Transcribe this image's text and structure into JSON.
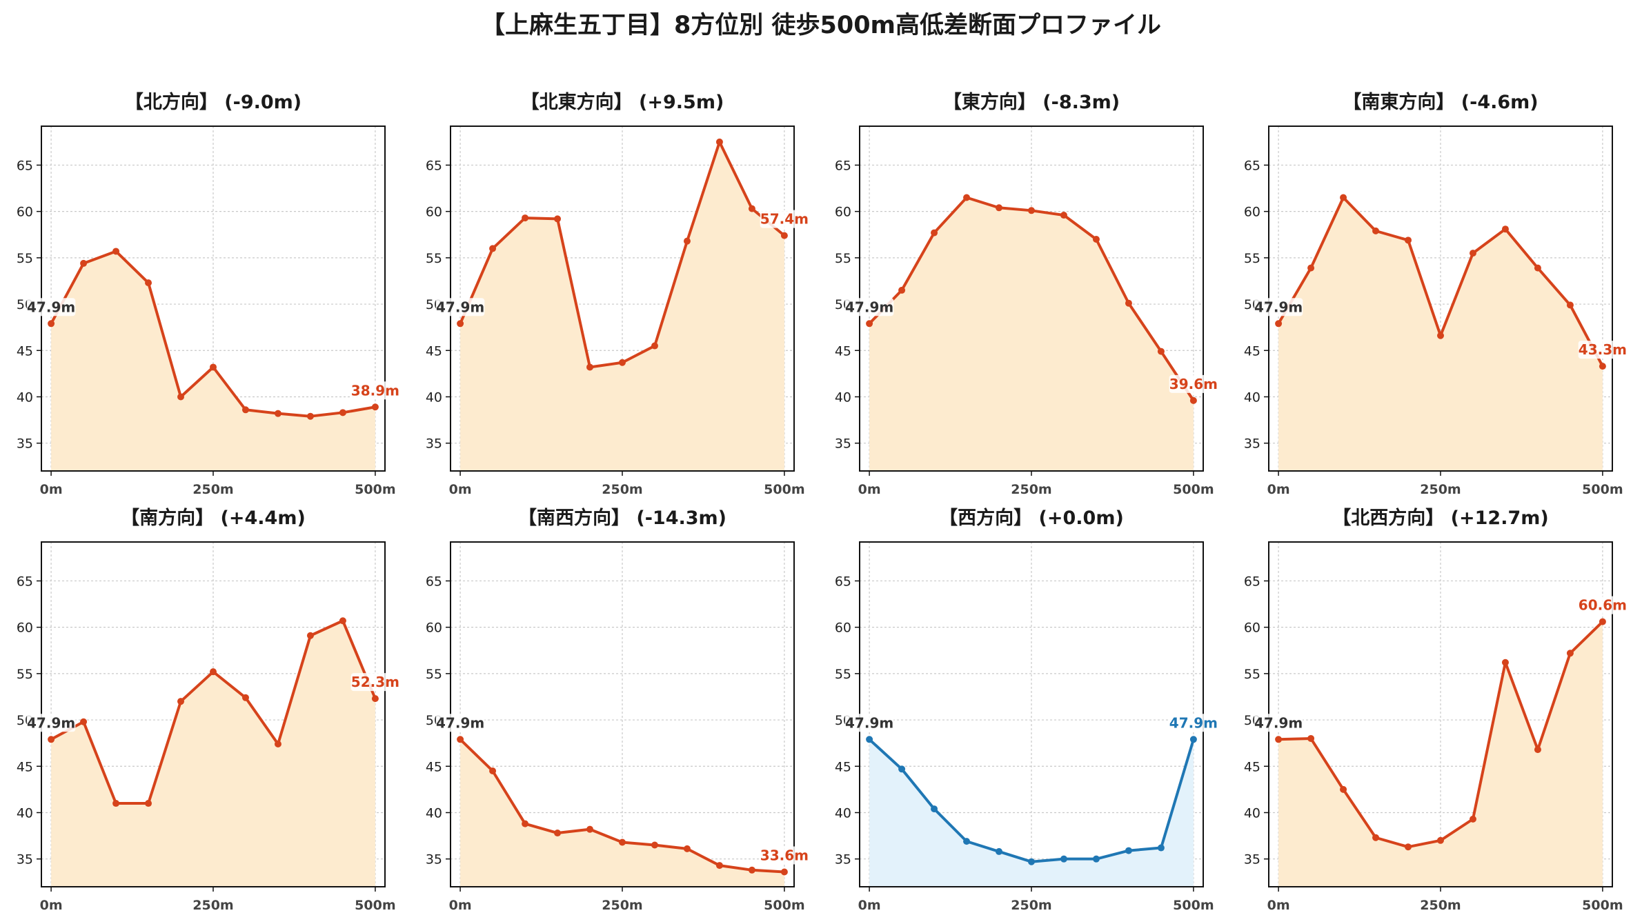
{
  "figure_title": "【上麻生五丁目】8方位別 徒歩500m高低差断面プロファイル",
  "colors": {
    "line": "#d6431b",
    "fill": "#fdebcf",
    "flat_line": "#1f77b4",
    "flat_fill": "#e3f2fb",
    "grid": "#c8c8c8"
  },
  "chart_data": [
    {
      "type": "area",
      "title": "【北方向】 (-9.0m)",
      "style": "default",
      "x": [
        0,
        50,
        100,
        150,
        200,
        250,
        300,
        350,
        400,
        450,
        500
      ],
      "y": [
        47.9,
        54.4,
        55.7,
        52.3,
        40.0,
        43.2,
        38.6,
        38.2,
        37.9,
        38.3,
        38.9
      ],
      "start_label": "47.9m",
      "end_label": "38.9m"
    },
    {
      "type": "area",
      "title": "【北東方向】 (+9.5m)",
      "style": "default",
      "x": [
        0,
        50,
        100,
        150,
        200,
        250,
        300,
        350,
        400,
        450,
        500
      ],
      "y": [
        47.9,
        56.0,
        59.3,
        59.2,
        43.2,
        43.7,
        45.5,
        56.8,
        67.5,
        60.3,
        57.4
      ],
      "start_label": "47.9m",
      "end_label": "57.4m"
    },
    {
      "type": "area",
      "title": "【東方向】 (-8.3m)",
      "style": "default",
      "x": [
        0,
        50,
        100,
        150,
        200,
        250,
        300,
        350,
        400,
        450,
        500
      ],
      "y": [
        47.9,
        51.5,
        57.7,
        61.5,
        60.4,
        60.1,
        59.6,
        57.0,
        50.1,
        44.9,
        39.6
      ],
      "start_label": "47.9m",
      "end_label": "39.6m"
    },
    {
      "type": "area",
      "title": "【南東方向】 (-4.6m)",
      "style": "default",
      "x": [
        0,
        50,
        100,
        150,
        200,
        250,
        300,
        350,
        400,
        450,
        500
      ],
      "y": [
        47.9,
        53.9,
        61.5,
        57.9,
        56.9,
        46.6,
        55.5,
        58.1,
        53.9,
        49.9,
        43.3
      ],
      "start_label": "47.9m",
      "end_label": "43.3m"
    },
    {
      "type": "area",
      "title": "【南方向】 (+4.4m)",
      "style": "default",
      "x": [
        0,
        50,
        100,
        150,
        200,
        250,
        300,
        350,
        400,
        450,
        500
      ],
      "y": [
        47.9,
        49.8,
        41.0,
        41.0,
        52.0,
        55.2,
        52.4,
        47.4,
        59.1,
        60.7,
        52.3
      ],
      "start_label": "47.9m",
      "end_label": "52.3m"
    },
    {
      "type": "area",
      "title": "【南西方向】 (-14.3m)",
      "style": "default",
      "x": [
        0,
        50,
        100,
        150,
        200,
        250,
        300,
        350,
        400,
        450,
        500
      ],
      "y": [
        47.9,
        44.5,
        38.8,
        37.8,
        38.2,
        36.8,
        36.5,
        36.1,
        34.3,
        33.8,
        33.6
      ],
      "start_label": "47.9m",
      "end_label": "33.6m"
    },
    {
      "type": "area",
      "title": "【西方向】 (+0.0m)",
      "style": "flat",
      "x": [
        0,
        50,
        100,
        150,
        200,
        250,
        300,
        350,
        400,
        450,
        500
      ],
      "y": [
        47.9,
        44.7,
        40.4,
        36.9,
        35.8,
        34.7,
        35.0,
        35.0,
        35.9,
        36.2,
        47.9
      ],
      "start_label": "47.9m",
      "end_label": "47.9m"
    },
    {
      "type": "area",
      "title": "【北西方向】 (+12.7m)",
      "style": "default",
      "x": [
        0,
        50,
        100,
        150,
        200,
        250,
        300,
        350,
        400,
        450,
        500
      ],
      "y": [
        47.9,
        48.0,
        42.5,
        37.3,
        36.3,
        37.0,
        39.3,
        56.2,
        46.8,
        57.2,
        60.6
      ],
      "start_label": "47.9m",
      "end_label": "60.6m"
    }
  ],
  "axes": {
    "xlim": [
      -15,
      515
    ],
    "ylim": [
      32,
      69.2
    ],
    "yticks": [
      35,
      40,
      45,
      50,
      55,
      60,
      65
    ],
    "xticks": [
      0,
      250,
      500
    ],
    "xtick_labels": [
      "0m",
      "250m",
      "500m"
    ],
    "grid": true
  }
}
